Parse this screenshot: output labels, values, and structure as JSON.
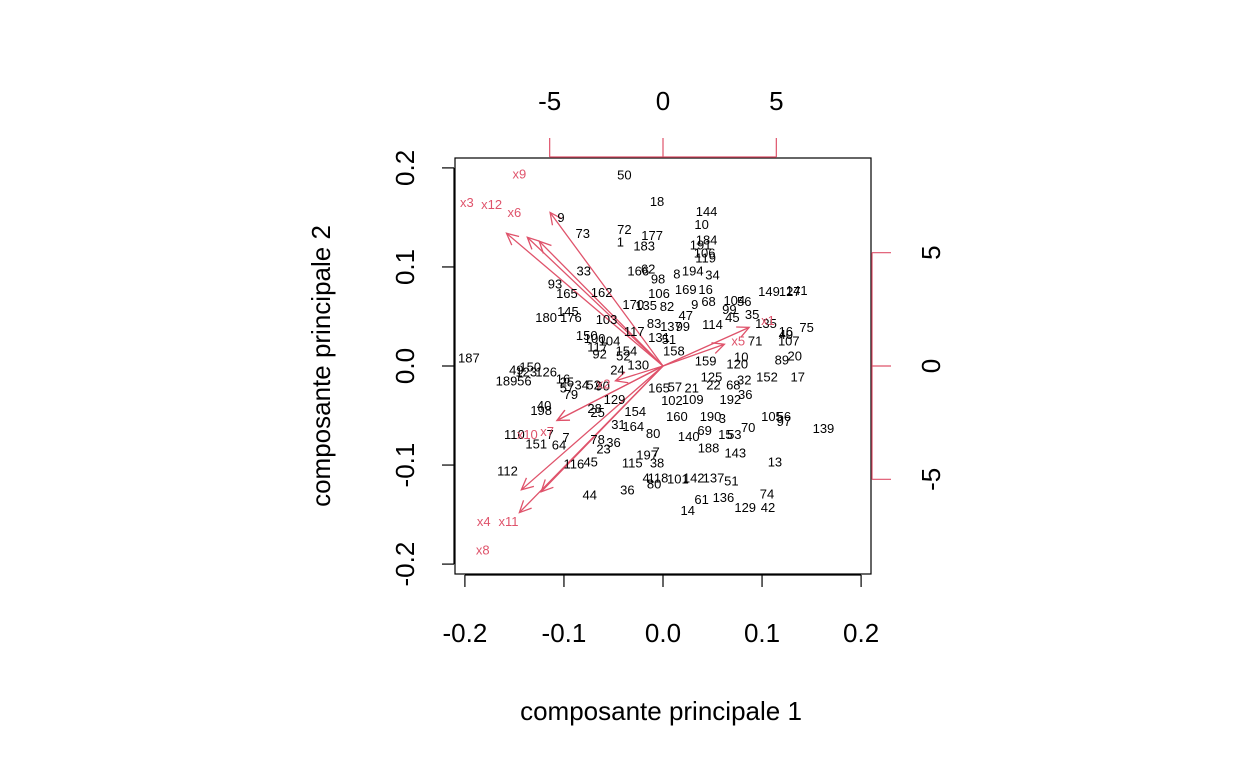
{
  "chart_data": {
    "type": "scatter",
    "subtype": "biplot",
    "title": "",
    "xlabel": "composante principale 1",
    "ylabel": "composante principale 2",
    "xlim": [
      -0.21,
      0.21
    ],
    "ylim": [
      -0.21,
      0.21
    ],
    "x_ticks": [
      "-0.2",
      "-0.1",
      "0.0",
      "0.1",
      "0.2"
    ],
    "y_ticks": [
      "-0.2",
      "-0.1",
      "0.0",
      "0.1",
      "0.2"
    ],
    "top_ticks": [
      "-5",
      "0",
      "5"
    ],
    "right_ticks": [
      "-5",
      "0",
      "5"
    ],
    "secondary_scale_per_unit": 43.7,
    "grid": false,
    "colors": {
      "observations": "#000000",
      "variables": "#DF536B",
      "frame": "#000000"
    },
    "observations": [
      {
        "label": "50",
        "x": -0.039,
        "y": 0.193
      },
      {
        "label": "18",
        "x": -0.006,
        "y": 0.166
      },
      {
        "label": "144",
        "x": 0.044,
        "y": 0.156
      },
      {
        "label": "10",
        "x": 0.039,
        "y": 0.143
      },
      {
        "label": "9",
        "x": -0.103,
        "y": 0.15
      },
      {
        "label": "73",
        "x": -0.081,
        "y": 0.134
      },
      {
        "label": "72",
        "x": -0.039,
        "y": 0.138
      },
      {
        "label": "177",
        "x": -0.011,
        "y": 0.132
      },
      {
        "label": "1",
        "x": -0.043,
        "y": 0.125
      },
      {
        "label": "183",
        "x": -0.019,
        "y": 0.121
      },
      {
        "label": "184",
        "x": 0.044,
        "y": 0.127
      },
      {
        "label": "191",
        "x": 0.038,
        "y": 0.122
      },
      {
        "label": "106",
        "x": 0.042,
        "y": 0.114
      },
      {
        "label": "119",
        "x": 0.043,
        "y": 0.109
      },
      {
        "label": "33",
        "x": -0.08,
        "y": 0.096
      },
      {
        "label": "166",
        "x": -0.025,
        "y": 0.096
      },
      {
        "label": "62",
        "x": -0.015,
        "y": 0.098
      },
      {
        "label": "8",
        "x": 0.014,
        "y": 0.093
      },
      {
        "label": "194",
        "x": 0.03,
        "y": 0.096
      },
      {
        "label": "34",
        "x": 0.05,
        "y": 0.092
      },
      {
        "label": "98",
        "x": -0.005,
        "y": 0.088
      },
      {
        "label": "93",
        "x": -0.109,
        "y": 0.083
      },
      {
        "label": "165",
        "x": -0.097,
        "y": 0.073
      },
      {
        "label": "162",
        "x": -0.062,
        "y": 0.074
      },
      {
        "label": "106",
        "x": -0.004,
        "y": 0.073
      },
      {
        "label": "169",
        "x": 0.023,
        "y": 0.077
      },
      {
        "label": "16",
        "x": 0.043,
        "y": 0.077
      },
      {
        "label": "149",
        "x": 0.107,
        "y": 0.075
      },
      {
        "label": "127",
        "x": 0.128,
        "y": 0.075
      },
      {
        "label": "141",
        "x": 0.135,
        "y": 0.076
      },
      {
        "label": "68",
        "x": 0.046,
        "y": 0.065
      },
      {
        "label": "104",
        "x": 0.072,
        "y": 0.066
      },
      {
        "label": "56",
        "x": 0.082,
        "y": 0.065
      },
      {
        "label": "35",
        "x": 0.09,
        "y": 0.052
      },
      {
        "label": "145",
        "x": -0.096,
        "y": 0.055
      },
      {
        "label": "180",
        "x": -0.118,
        "y": 0.049
      },
      {
        "label": "176",
        "x": -0.093,
        "y": 0.049
      },
      {
        "label": "170",
        "x": -0.03,
        "y": 0.062
      },
      {
        "label": "135",
        "x": -0.017,
        "y": 0.061
      },
      {
        "label": "82",
        "x": 0.004,
        "y": 0.06
      },
      {
        "label": "9",
        "x": 0.032,
        "y": 0.062
      },
      {
        "label": "47",
        "x": 0.023,
        "y": 0.051
      },
      {
        "label": "99",
        "x": 0.067,
        "y": 0.057
      },
      {
        "label": "45",
        "x": 0.07,
        "y": 0.049
      },
      {
        "label": "103",
        "x": -0.057,
        "y": 0.047
      },
      {
        "label": "83",
        "x": -0.009,
        "y": 0.043
      },
      {
        "label": "137",
        "x": 0.008,
        "y": 0.04
      },
      {
        "label": "99",
        "x": 0.02,
        "y": 0.04
      },
      {
        "label": "114",
        "x": 0.05,
        "y": 0.042
      },
      {
        "label": "135",
        "x": 0.104,
        "y": 0.043
      },
      {
        "label": "16",
        "x": 0.124,
        "y": 0.035
      },
      {
        "label": "75",
        "x": 0.145,
        "y": 0.039
      },
      {
        "label": "150",
        "x": -0.077,
        "y": 0.031
      },
      {
        "label": "100",
        "x": -0.069,
        "y": 0.028
      },
      {
        "label": "104",
        "x": -0.054,
        "y": 0.025
      },
      {
        "label": "117",
        "x": -0.029,
        "y": 0.035
      },
      {
        "label": "131",
        "x": -0.004,
        "y": 0.029
      },
      {
        "label": "51",
        "x": 0.006,
        "y": 0.027
      },
      {
        "label": "40",
        "x": 0.124,
        "y": 0.032
      },
      {
        "label": "107",
        "x": 0.127,
        "y": 0.025
      },
      {
        "label": "71",
        "x": 0.093,
        "y": 0.025
      },
      {
        "label": "187",
        "x": -0.196,
        "y": 0.008
      },
      {
        "label": "92",
        "x": -0.064,
        "y": 0.012
      },
      {
        "label": "117",
        "x": -0.066,
        "y": 0.019
      },
      {
        "label": "154",
        "x": -0.037,
        "y": 0.015
      },
      {
        "label": "158",
        "x": 0.011,
        "y": 0.015
      },
      {
        "label": "52",
        "x": -0.04,
        "y": 0.01
      },
      {
        "label": "24",
        "x": -0.046,
        "y": -0.004
      },
      {
        "label": "130",
        "x": -0.025,
        "y": 0.001
      },
      {
        "label": "159",
        "x": 0.043,
        "y": 0.005
      },
      {
        "label": "120",
        "x": 0.075,
        "y": 0.002
      },
      {
        "label": "10",
        "x": 0.079,
        "y": 0.009
      },
      {
        "label": "89",
        "x": 0.12,
        "y": 0.006
      },
      {
        "label": "20",
        "x": 0.133,
        "y": 0.01
      },
      {
        "label": "49",
        "x": -0.148,
        "y": -0.004
      },
      {
        "label": "150",
        "x": -0.134,
        "y": -0.001
      },
      {
        "label": "123",
        "x": -0.138,
        "y": -0.006
      },
      {
        "label": "126",
        "x": -0.118,
        "y": -0.006
      },
      {
        "label": "189",
        "x": -0.158,
        "y": -0.015
      },
      {
        "label": "56",
        "x": -0.14,
        "y": -0.015
      },
      {
        "label": "16",
        "x": -0.101,
        "y": -0.013
      },
      {
        "label": "25",
        "x": -0.097,
        "y": -0.016
      },
      {
        "label": "125",
        "x": 0.049,
        "y": -0.011
      },
      {
        "label": "152",
        "x": 0.105,
        "y": -0.011
      },
      {
        "label": "17",
        "x": 0.136,
        "y": -0.011
      },
      {
        "label": "57",
        "x": -0.097,
        "y": -0.022
      },
      {
        "label": "34",
        "x": -0.082,
        "y": -0.019
      },
      {
        "label": "52",
        "x": -0.07,
        "y": -0.019
      },
      {
        "label": "90",
        "x": -0.061,
        "y": -0.02
      },
      {
        "label": "165",
        "x": -0.004,
        "y": -0.022
      },
      {
        "label": "57",
        "x": 0.012,
        "y": -0.021
      },
      {
        "label": "21",
        "x": 0.029,
        "y": -0.022
      },
      {
        "label": "22",
        "x": 0.051,
        "y": -0.019
      },
      {
        "label": "68",
        "x": 0.071,
        "y": -0.019
      },
      {
        "label": "32",
        "x": 0.082,
        "y": -0.014
      },
      {
        "label": "79",
        "x": -0.093,
        "y": -0.029
      },
      {
        "label": "129",
        "x": -0.049,
        "y": -0.034
      },
      {
        "label": "102",
        "x": 0.009,
        "y": -0.035
      },
      {
        "label": "109",
        "x": 0.03,
        "y": -0.034
      },
      {
        "label": "192",
        "x": 0.068,
        "y": -0.034
      },
      {
        "label": "36",
        "x": 0.083,
        "y": -0.029
      },
      {
        "label": "40",
        "x": -0.12,
        "y": -0.04
      },
      {
        "label": "198",
        "x": -0.123,
        "y": -0.045
      },
      {
        "label": "28",
        "x": -0.069,
        "y": -0.043
      },
      {
        "label": "25",
        "x": -0.066,
        "y": -0.047
      },
      {
        "label": "154",
        "x": -0.028,
        "y": -0.046
      },
      {
        "label": "160",
        "x": 0.014,
        "y": -0.051
      },
      {
        "label": "190",
        "x": 0.048,
        "y": -0.051
      },
      {
        "label": "3",
        "x": 0.06,
        "y": -0.053
      },
      {
        "label": "105",
        "x": 0.11,
        "y": -0.051
      },
      {
        "label": "56",
        "x": 0.122,
        "y": -0.051
      },
      {
        "label": "97",
        "x": 0.122,
        "y": -0.056
      },
      {
        "label": "139",
        "x": 0.162,
        "y": -0.063
      },
      {
        "label": "31",
        "x": -0.045,
        "y": -0.059
      },
      {
        "label": "164",
        "x": -0.03,
        "y": -0.061
      },
      {
        "label": "80",
        "x": -0.01,
        "y": -0.068
      },
      {
        "label": "69",
        "x": 0.042,
        "y": -0.065
      },
      {
        "label": "15",
        "x": 0.063,
        "y": -0.069
      },
      {
        "label": "53",
        "x": 0.072,
        "y": -0.069
      },
      {
        "label": "70",
        "x": 0.086,
        "y": -0.062
      },
      {
        "label": "140",
        "x": 0.026,
        "y": -0.071
      },
      {
        "label": "110",
        "x": -0.15,
        "y": -0.069
      },
      {
        "label": "7",
        "x": -0.114,
        "y": -0.069
      },
      {
        "label": "151",
        "x": -0.128,
        "y": -0.079
      },
      {
        "label": "64",
        "x": -0.105,
        "y": -0.08
      },
      {
        "label": "7",
        "x": -0.098,
        "y": -0.072
      },
      {
        "label": "78",
        "x": -0.066,
        "y": -0.074
      },
      {
        "label": "36",
        "x": -0.05,
        "y": -0.077
      },
      {
        "label": "23",
        "x": -0.06,
        "y": -0.084
      },
      {
        "label": "188",
        "x": 0.046,
        "y": -0.083
      },
      {
        "label": "143",
        "x": 0.073,
        "y": -0.088
      },
      {
        "label": "197",
        "x": -0.016,
        "y": -0.09
      },
      {
        "label": "7",
        "x": -0.007,
        "y": -0.087
      },
      {
        "label": "116",
        "x": -0.09,
        "y": -0.099
      },
      {
        "label": "45",
        "x": -0.073,
        "y": -0.097
      },
      {
        "label": "115",
        "x": -0.031,
        "y": -0.098
      },
      {
        "label": "38",
        "x": -0.006,
        "y": -0.098
      },
      {
        "label": "13",
        "x": 0.113,
        "y": -0.097
      },
      {
        "label": "112",
        "x": -0.157,
        "y": -0.106
      },
      {
        "label": "4",
        "x": -0.017,
        "y": -0.113
      },
      {
        "label": "118",
        "x": -0.005,
        "y": -0.113
      },
      {
        "label": "80",
        "x": -0.009,
        "y": -0.119
      },
      {
        "label": "101",
        "x": 0.015,
        "y": -0.114
      },
      {
        "label": "142",
        "x": 0.031,
        "y": -0.113
      },
      {
        "label": "137",
        "x": 0.051,
        "y": -0.113
      },
      {
        "label": "51",
        "x": 0.069,
        "y": -0.116
      },
      {
        "label": "44",
        "x": -0.074,
        "y": -0.13
      },
      {
        "label": "36",
        "x": -0.036,
        "y": -0.125
      },
      {
        "label": "61",
        "x": 0.039,
        "y": -0.135
      },
      {
        "label": "136",
        "x": 0.061,
        "y": -0.133
      },
      {
        "label": "74",
        "x": 0.105,
        "y": -0.129
      },
      {
        "label": "129",
        "x": 0.083,
        "y": -0.143
      },
      {
        "label": "42",
        "x": 0.106,
        "y": -0.143
      },
      {
        "label": "14",
        "x": 0.025,
        "y": -0.146
      }
    ],
    "variables": [
      {
        "label": "x9",
        "x": -0.145,
        "y": 0.194,
        "tip_x": -0.114,
        "tip_y": 0.155
      },
      {
        "label": "x3",
        "x": -0.198,
        "y": 0.165,
        "tip_x": -0.158,
        "tip_y": 0.134
      },
      {
        "label": "x12",
        "x": -0.173,
        "y": 0.163,
        "tip_x": -0.137,
        "tip_y": 0.13
      },
      {
        "label": "x6",
        "x": -0.15,
        "y": 0.155,
        "tip_x": -0.125,
        "tip_y": 0.126
      },
      {
        "label": "x1",
        "x": 0.106,
        "y": 0.046,
        "tip_x": 0.087,
        "tip_y": 0.039
      },
      {
        "label": "x5",
        "x": 0.076,
        "y": 0.025,
        "tip_x": 0.062,
        "tip_y": 0.022
      },
      {
        "label": "x10",
        "x": -0.137,
        "y": -0.069,
        "tip_x": -0.107,
        "tip_y": -0.055
      },
      {
        "label": "x7",
        "x": -0.117,
        "y": -0.066,
        "tip_x": -0.107,
        "tip_y": -0.055
      },
      {
        "label": "x4",
        "x": -0.181,
        "y": -0.157,
        "tip_x": -0.143,
        "tip_y": -0.125
      },
      {
        "label": "x11",
        "x": -0.156,
        "y": -0.157,
        "tip_x": -0.123,
        "tip_y": -0.127
      },
      {
        "label": "x8",
        "x": -0.182,
        "y": -0.186,
        "tip_x": -0.145,
        "tip_y": -0.148
      },
      {
        "label": "x2",
        "x": -0.06,
        "y": -0.018,
        "tip_x": -0.048,
        "tip_y": -0.015
      }
    ]
  }
}
